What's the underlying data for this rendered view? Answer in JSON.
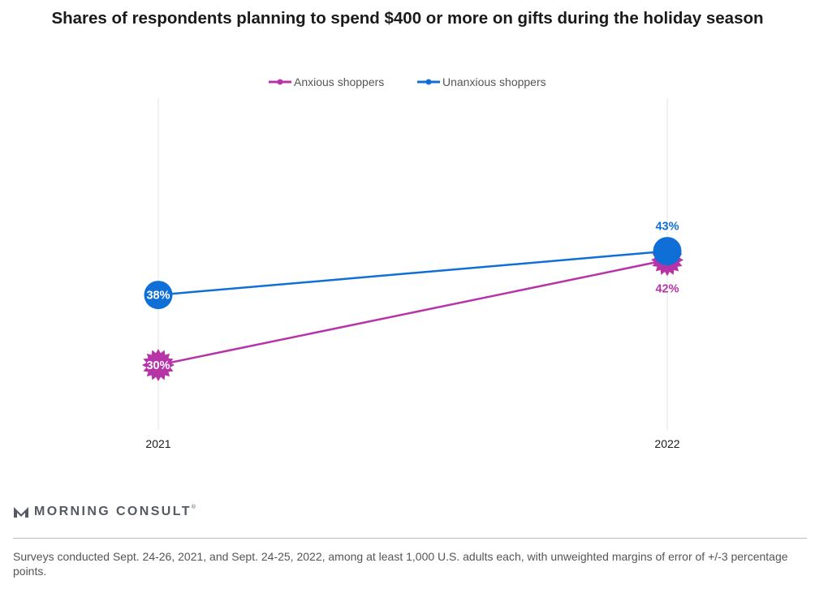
{
  "title": "Shares of respondents planning to spend $400 or more on gifts during the holiday season",
  "brand": {
    "name": "MORNING CONSULT",
    "mark": "®",
    "icon": "morning-consult-logo-icon"
  },
  "footnote": "Surveys conducted Sept. 24-26, 2021, and Sept. 24-25, 2022, among at least 1,000 U.S. adults each, with unweighted margins of error of +/-3 percentage points.",
  "chart_data": {
    "type": "line",
    "title": "Shares of respondents planning to spend $400 or more on gifts during the holiday season",
    "x": [
      "2021",
      "2022"
    ],
    "ylim": [
      20,
      50
    ],
    "grid": "vertical",
    "legend_position": "top-center",
    "series": [
      {
        "name": "Anxious shoppers",
        "color": "#b734a8",
        "marker": "starburst",
        "values": [
          30,
          42
        ],
        "labels": [
          "30%",
          "42%"
        ],
        "label_positions": [
          "inside",
          "below"
        ]
      },
      {
        "name": "Unanxious shoppers",
        "color": "#0f6fd6",
        "marker": "circle",
        "values": [
          38,
          43
        ],
        "labels": [
          "38%",
          "43%"
        ],
        "label_positions": [
          "inside",
          "above"
        ]
      }
    ]
  }
}
